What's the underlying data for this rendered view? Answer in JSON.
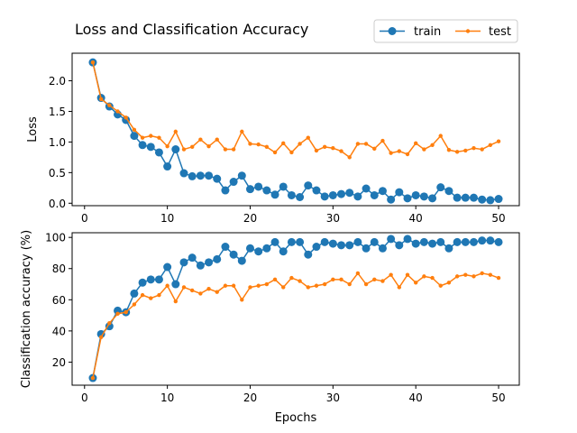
{
  "chart_data": [
    {
      "type": "line",
      "title": "Loss and Classification Accuracy",
      "xlabel": "",
      "ylabel": "Loss",
      "xlim": [
        -1.5,
        52.5
      ],
      "ylim": [
        -0.04,
        2.45
      ],
      "xticks": [
        0,
        10,
        20,
        30,
        40,
        50
      ],
      "xtick_labels": [
        "0",
        "10",
        "20",
        "30",
        "40",
        "50"
      ],
      "yticks": [
        0.0,
        0.5,
        1.0,
        1.5,
        2.0
      ],
      "ytick_labels": [
        "0.0",
        "0.5",
        "1.0",
        "1.5",
        "2.0"
      ],
      "grid": false,
      "legend_position": "top-right, above axes",
      "x": [
        1,
        2,
        3,
        4,
        5,
        6,
        7,
        8,
        9,
        10,
        11,
        12,
        13,
        14,
        15,
        16,
        17,
        18,
        19,
        20,
        21,
        22,
        23,
        24,
        25,
        26,
        27,
        28,
        29,
        30,
        31,
        32,
        33,
        34,
        35,
        36,
        37,
        38,
        39,
        40,
        41,
        42,
        43,
        44,
        45,
        46,
        47,
        48,
        49,
        50
      ],
      "series": [
        {
          "name": "train",
          "color": "#1f77b4",
          "marker": "circle-large",
          "values": [
            2.3,
            1.72,
            1.58,
            1.45,
            1.36,
            1.1,
            0.95,
            0.92,
            0.83,
            0.6,
            0.88,
            0.49,
            0.44,
            0.45,
            0.45,
            0.4,
            0.21,
            0.35,
            0.45,
            0.23,
            0.27,
            0.21,
            0.14,
            0.27,
            0.13,
            0.1,
            0.29,
            0.21,
            0.11,
            0.13,
            0.15,
            0.17,
            0.11,
            0.24,
            0.13,
            0.2,
            0.06,
            0.18,
            0.08,
            0.13,
            0.11,
            0.08,
            0.26,
            0.2,
            0.09,
            0.09,
            0.09,
            0.06,
            0.05,
            0.07
          ]
        },
        {
          "name": "test",
          "color": "#ff7f0e",
          "marker": "circle-small",
          "values": [
            2.3,
            1.7,
            1.6,
            1.5,
            1.4,
            1.2,
            1.07,
            1.1,
            1.07,
            0.93,
            1.17,
            0.88,
            0.92,
            1.04,
            0.93,
            1.04,
            0.88,
            0.88,
            1.17,
            0.97,
            0.96,
            0.92,
            0.83,
            0.98,
            0.83,
            0.97,
            1.07,
            0.86,
            0.92,
            0.9,
            0.85,
            0.75,
            0.97,
            0.97,
            0.89,
            1.02,
            0.82,
            0.85,
            0.8,
            0.98,
            0.88,
            0.95,
            1.1,
            0.87,
            0.84,
            0.86,
            0.9,
            0.88,
            0.95,
            1.01
          ]
        }
      ]
    },
    {
      "type": "line",
      "title": "",
      "xlabel": "Epochs",
      "ylabel": "Classification accuracy (%)",
      "xlim": [
        -1.5,
        52.5
      ],
      "ylim": [
        5.2,
        103.0
      ],
      "xticks": [
        0,
        10,
        20,
        30,
        40,
        50
      ],
      "xtick_labels": [
        "0",
        "10",
        "20",
        "30",
        "40",
        "50"
      ],
      "yticks": [
        20,
        40,
        60,
        80,
        100
      ],
      "ytick_labels": [
        "20",
        "40",
        "60",
        "80",
        "100"
      ],
      "grid": false,
      "x": [
        1,
        2,
        3,
        4,
        5,
        6,
        7,
        8,
        9,
        10,
        11,
        12,
        13,
        14,
        15,
        16,
        17,
        18,
        19,
        20,
        21,
        22,
        23,
        24,
        25,
        26,
        27,
        28,
        29,
        30,
        31,
        32,
        33,
        34,
        35,
        36,
        37,
        38,
        39,
        40,
        41,
        42,
        43,
        44,
        45,
        46,
        47,
        48,
        49,
        50
      ],
      "series": [
        {
          "name": "train",
          "color": "#1f77b4",
          "marker": "circle-large",
          "values": [
            9.8,
            38,
            43,
            53,
            52,
            64,
            71,
            73,
            73,
            81,
            70,
            84,
            87,
            82,
            84,
            86,
            94,
            89,
            85,
            93,
            91,
            93,
            97,
            91,
            97,
            97,
            89,
            94,
            97,
            96,
            95,
            95,
            97,
            93,
            97,
            93,
            99,
            95,
            99,
            96,
            97,
            96,
            97,
            93,
            97,
            97,
            97,
            98,
            98,
            97
          ]
        },
        {
          "name": "test",
          "color": "#ff7f0e",
          "marker": "circle-small",
          "values": [
            9.8,
            36,
            45,
            51,
            52,
            57,
            63,
            61,
            63,
            69,
            59,
            68,
            66,
            64,
            67,
            65,
            69,
            69,
            60,
            68,
            69,
            70,
            73,
            68,
            74,
            72,
            68,
            69,
            70,
            73,
            73,
            70,
            77,
            70,
            73,
            72,
            76,
            68,
            76,
            71,
            75,
            74,
            69,
            71,
            75,
            76,
            75,
            77,
            76,
            74
          ]
        }
      ]
    }
  ]
}
